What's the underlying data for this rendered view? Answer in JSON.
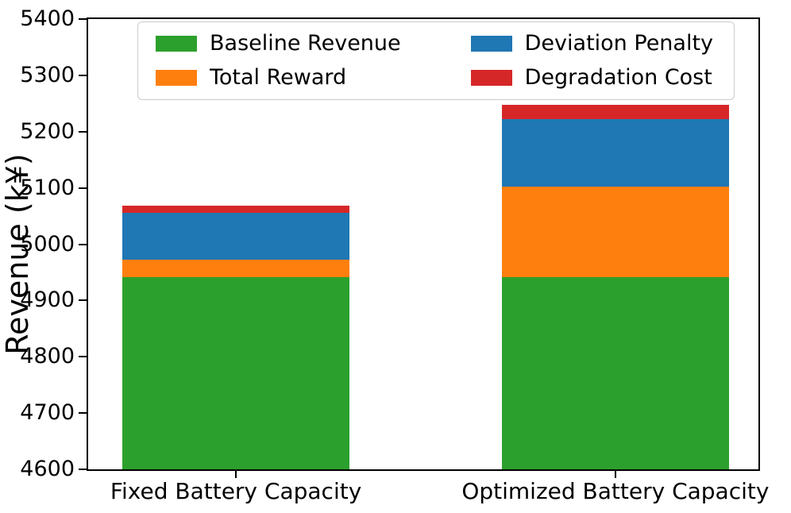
{
  "figure": {
    "background": "#ffffff",
    "text_color": "#000000"
  },
  "chart_data": {
    "type": "bar",
    "stacked": true,
    "title": "",
    "xlabel": "",
    "ylabel": "Revenue (k¥)",
    "categories": [
      "Fixed Battery Capacity",
      "Optimized Battery Capacity"
    ],
    "series": [
      {
        "name": "Baseline Revenue",
        "color": "#2ca02c",
        "stack_top": [
          4942,
          4942
        ],
        "segment_values": [
          4942,
          4942
        ]
      },
      {
        "name": "Total Reward",
        "color": "#ff7f0e",
        "stack_top": [
          4972,
          5103
        ],
        "segment_values": [
          30,
          161
        ]
      },
      {
        "name": "Deviation Penalty",
        "color": "#1f77b4",
        "stack_top": [
          5056,
          5222
        ],
        "segment_values": [
          84,
          119
        ]
      },
      {
        "name": "Degradation Cost",
        "color": "#d62728",
        "stack_top": [
          5068,
          5248
        ],
        "segment_values": [
          12,
          26
        ]
      }
    ],
    "bar_totals": [
      5068,
      5248
    ],
    "ylim": [
      4600,
      5400
    ],
    "yticks": [
      4600,
      4700,
      4800,
      4900,
      5000,
      5100,
      5200,
      5300,
      5400
    ],
    "grid": false,
    "legend": {
      "position": "upper-left-inside",
      "columns": 2,
      "entries": [
        "Baseline Revenue",
        "Total Reward",
        "Deviation Penalty",
        "Degradation Cost"
      ]
    }
  }
}
